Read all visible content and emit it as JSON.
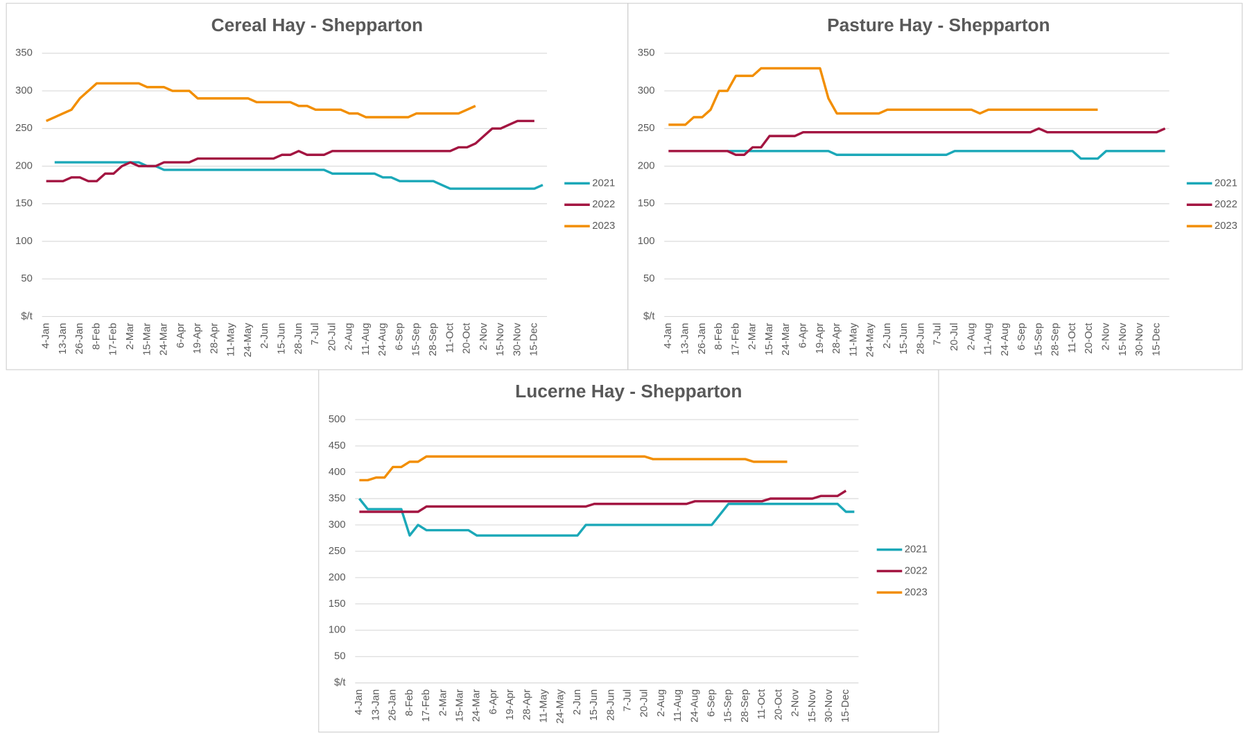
{
  "chart_data": [
    {
      "type": "line",
      "title": "Cereal Hay - Shepparton",
      "categories": [
        "4-Jan",
        null,
        "13-Jan",
        null,
        "26-Jan",
        null,
        "8-Feb",
        null,
        "17-Feb",
        null,
        "2-Mar",
        null,
        "15-Mar",
        null,
        "24-Mar",
        null,
        "6-Apr",
        null,
        "19-Apr",
        null,
        "28-Apr",
        null,
        "11-May",
        null,
        "24-May",
        null,
        "2-Jun",
        null,
        "15-Jun",
        null,
        "28-Jun",
        null,
        "7-Jul",
        null,
        "20-Jul",
        null,
        "2-Aug",
        null,
        "11-Aug",
        null,
        "24-Aug",
        null,
        "6-Sep",
        null,
        "15-Sep",
        null,
        "28-Sep",
        null,
        "11-Oct",
        null,
        "20-Oct",
        null,
        "2-Nov",
        null,
        "15-Nov",
        null,
        "30-Nov",
        null,
        "15-Dec",
        null
      ],
      "series": [
        {
          "name": "2021",
          "color": "#1ba8b8",
          "values": [
            null,
            205,
            205,
            205,
            205,
            205,
            205,
            205,
            205,
            205,
            205,
            205,
            200,
            200,
            195,
            195,
            195,
            195,
            195,
            195,
            195,
            195,
            195,
            195,
            195,
            195,
            195,
            195,
            195,
            195,
            195,
            195,
            195,
            195,
            190,
            190,
            190,
            190,
            190,
            190,
            185,
            185,
            180,
            180,
            180,
            180,
            180,
            175,
            170,
            170,
            170,
            170,
            170,
            170,
            170,
            170,
            170,
            170,
            170,
            175
          ]
        },
        {
          "name": "2022",
          "color": "#a31541",
          "values": [
            180,
            180,
            180,
            185,
            185,
            180,
            180,
            190,
            190,
            200,
            205,
            200,
            200,
            200,
            205,
            205,
            205,
            205,
            210,
            210,
            210,
            210,
            210,
            210,
            210,
            210,
            210,
            210,
            215,
            215,
            220,
            215,
            215,
            215,
            220,
            220,
            220,
            220,
            220,
            220,
            220,
            220,
            220,
            220,
            220,
            220,
            220,
            220,
            220,
            225,
            225,
            230,
            240,
            250,
            250,
            255,
            260,
            260,
            260,
            null
          ]
        },
        {
          "name": "2023",
          "color": "#f28e00",
          "values": [
            260,
            265,
            270,
            275,
            290,
            300,
            310,
            310,
            310,
            310,
            310,
            310,
            305,
            305,
            305,
            300,
            300,
            300,
            290,
            290,
            290,
            290,
            290,
            290,
            290,
            285,
            285,
            285,
            285,
            285,
            280,
            280,
            275,
            275,
            275,
            275,
            270,
            270,
            265,
            265,
            265,
            265,
            265,
            265,
            270,
            270,
            270,
            270,
            270,
            270,
            275,
            280,
            null,
            null,
            null,
            null,
            null,
            null,
            null,
            null
          ]
        }
      ],
      "ylim": [
        0,
        350
      ],
      "yticks": [
        {
          "value": 0,
          "label": "$/t"
        },
        50,
        100,
        150,
        200,
        250,
        300,
        350
      ],
      "grid": true,
      "legend": "right"
    },
    {
      "type": "line",
      "title": "Pasture Hay - Shepparton",
      "categories": [
        "4-Jan",
        null,
        "13-Jan",
        null,
        "26-Jan",
        null,
        "8-Feb",
        null,
        "17-Feb",
        null,
        "2-Mar",
        null,
        "15-Mar",
        null,
        "24-Mar",
        null,
        "6-Apr",
        null,
        "19-Apr",
        null,
        "28-Apr",
        null,
        "11-May",
        null,
        "24-May",
        null,
        "2-Jun",
        null,
        "15-Jun",
        null,
        "28-Jun",
        null,
        "7-Jul",
        null,
        "20-Jul",
        null,
        "2-Aug",
        null,
        "11-Aug",
        null,
        "24-Aug",
        null,
        "6-Sep",
        null,
        "15-Sep",
        null,
        "28-Sep",
        null,
        "11-Oct",
        null,
        "20-Oct",
        null,
        "2-Nov",
        null,
        "15-Nov",
        null,
        "30-Nov",
        null,
        "15-Dec",
        null
      ],
      "series": [
        {
          "name": "2021",
          "color": "#1ba8b8",
          "values": [
            null,
            null,
            null,
            null,
            null,
            null,
            null,
            220,
            220,
            220,
            220,
            220,
            220,
            220,
            220,
            220,
            220,
            220,
            220,
            220,
            215,
            215,
            215,
            215,
            215,
            215,
            215,
            215,
            215,
            215,
            215,
            215,
            215,
            215,
            220,
            220,
            220,
            220,
            220,
            220,
            220,
            220,
            220,
            220,
            220,
            220,
            220,
            220,
            220,
            210,
            210,
            210,
            220,
            220,
            220,
            220,
            220,
            220,
            220,
            220
          ]
        },
        {
          "name": "2022",
          "color": "#a31541",
          "values": [
            220,
            220,
            220,
            220,
            220,
            220,
            220,
            220,
            215,
            215,
            225,
            225,
            240,
            240,
            240,
            240,
            245,
            245,
            245,
            245,
            245,
            245,
            245,
            245,
            245,
            245,
            245,
            245,
            245,
            245,
            245,
            245,
            245,
            245,
            245,
            245,
            245,
            245,
            245,
            245,
            245,
            245,
            245,
            245,
            250,
            245,
            245,
            245,
            245,
            245,
            245,
            245,
            245,
            245,
            245,
            245,
            245,
            245,
            245,
            250
          ]
        },
        {
          "name": "2023",
          "color": "#f28e00",
          "values": [
            255,
            255,
            255,
            265,
            265,
            275,
            300,
            300,
            320,
            320,
            320,
            330,
            330,
            330,
            330,
            330,
            330,
            330,
            330,
            290,
            270,
            270,
            270,
            270,
            270,
            270,
            275,
            275,
            275,
            275,
            275,
            275,
            275,
            275,
            275,
            275,
            275,
            270,
            275,
            275,
            275,
            275,
            275,
            275,
            275,
            275,
            275,
            275,
            275,
            275,
            275,
            275,
            null,
            null,
            null,
            null,
            null,
            null,
            null,
            null
          ]
        }
      ],
      "ylim": [
        0,
        350
      ],
      "yticks": [
        {
          "value": 0,
          "label": "$/t"
        },
        50,
        100,
        150,
        200,
        250,
        300,
        350
      ],
      "grid": true,
      "legend": "right"
    },
    {
      "type": "line",
      "title": "Lucerne Hay - Shepparton",
      "categories": [
        "4-Jan",
        null,
        "13-Jan",
        null,
        "26-Jan",
        null,
        "8-Feb",
        null,
        "17-Feb",
        null,
        "2-Mar",
        null,
        "15-Mar",
        null,
        "24-Mar",
        null,
        "6-Apr",
        null,
        "19-Apr",
        null,
        "28-Apr",
        null,
        "11-May",
        null,
        "24-May",
        null,
        "2-Jun",
        null,
        "15-Jun",
        null,
        "28-Jun",
        null,
        "7-Jul",
        null,
        "20-Jul",
        null,
        "2-Aug",
        null,
        "11-Aug",
        null,
        "24-Aug",
        null,
        "6-Sep",
        null,
        "15-Sep",
        null,
        "28-Sep",
        null,
        "11-Oct",
        null,
        "20-Oct",
        null,
        "2-Nov",
        null,
        "15-Nov",
        null,
        "30-Nov",
        null,
        "15-Dec",
        null
      ],
      "series": [
        {
          "name": "2021",
          "color": "#1ba8b8",
          "values": [
            350,
            330,
            330,
            330,
            330,
            330,
            280,
            300,
            290,
            290,
            290,
            290,
            290,
            290,
            280,
            280,
            280,
            280,
            280,
            280,
            280,
            280,
            280,
            280,
            280,
            280,
            280,
            300,
            300,
            300,
            300,
            300,
            300,
            300,
            300,
            300,
            300,
            300,
            300,
            300,
            300,
            300,
            300,
            320,
            340,
            340,
            340,
            340,
            340,
            340,
            340,
            340,
            340,
            340,
            340,
            340,
            340,
            340,
            325,
            325
          ]
        },
        {
          "name": "2022",
          "color": "#a31541",
          "values": [
            325,
            325,
            325,
            325,
            325,
            325,
            325,
            325,
            335,
            335,
            335,
            335,
            335,
            335,
            335,
            335,
            335,
            335,
            335,
            335,
            335,
            335,
            335,
            335,
            335,
            335,
            335,
            335,
            340,
            340,
            340,
            340,
            340,
            340,
            340,
            340,
            340,
            340,
            340,
            340,
            345,
            345,
            345,
            345,
            345,
            345,
            345,
            345,
            345,
            350,
            350,
            350,
            350,
            350,
            350,
            355,
            355,
            355,
            365,
            null
          ]
        },
        {
          "name": "2023",
          "color": "#f28e00",
          "values": [
            385,
            385,
            390,
            390,
            410,
            410,
            420,
            420,
            430,
            430,
            430,
            430,
            430,
            430,
            430,
            430,
            430,
            430,
            430,
            430,
            430,
            430,
            430,
            430,
            430,
            430,
            430,
            430,
            430,
            430,
            430,
            430,
            430,
            430,
            430,
            425,
            425,
            425,
            425,
            425,
            425,
            425,
            425,
            425,
            425,
            425,
            425,
            420,
            420,
            420,
            420,
            420,
            null,
            null,
            null,
            null,
            null,
            null,
            null,
            null
          ]
        }
      ],
      "ylim": [
        0,
        500
      ],
      "yticks": [
        {
          "value": 0,
          "label": "$/t"
        },
        50,
        100,
        150,
        200,
        250,
        300,
        350,
        400,
        450,
        500
      ],
      "grid": true,
      "legend": "right"
    }
  ]
}
